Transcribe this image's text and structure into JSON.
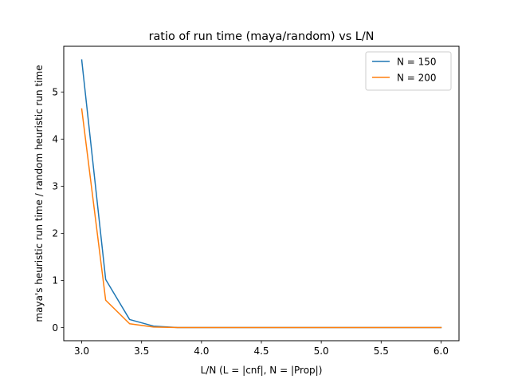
{
  "chart_data": {
    "type": "line",
    "title": "ratio of run time (maya/random) vs L/N",
    "xlabel": "L/N (L = |cnf|, N = |Prop|)",
    "ylabel": "maya's heuristic run time / random heuristic run time",
    "xlim": [
      2.85,
      6.15
    ],
    "ylim": [
      -0.28,
      5.97
    ],
    "x_ticks": [
      3.0,
      3.5,
      4.0,
      4.5,
      5.0,
      5.5,
      6.0
    ],
    "x_tick_labels": [
      "3.0",
      "3.5",
      "4.0",
      "4.5",
      "5.0",
      "5.5",
      "6.0"
    ],
    "y_ticks": [
      0,
      1,
      2,
      3,
      4,
      5
    ],
    "y_tick_labels": [
      "0",
      "1",
      "2",
      "3",
      "4",
      "5"
    ],
    "grid": false,
    "legend_position": "upper right",
    "series": [
      {
        "name": "N = 150",
        "color": "#1f77b4",
        "x": [
          3.0,
          3.2,
          3.4,
          3.6,
          3.8,
          4.0,
          4.2,
          4.4,
          4.6,
          4.8,
          5.0,
          5.2,
          5.4,
          5.6,
          5.8,
          6.0
        ],
        "y": [
          5.68,
          1.02,
          0.17,
          0.03,
          0.0,
          0.0,
          0.0,
          0.0,
          0.0,
          0.0,
          0.0,
          0.0,
          0.0,
          0.0,
          0.0,
          0.0
        ]
      },
      {
        "name": "N = 200",
        "color": "#ff7f0e",
        "x": [
          3.0,
          3.2,
          3.4,
          3.6,
          3.8,
          4.0,
          4.2,
          4.4,
          4.6,
          4.8,
          5.0,
          5.2,
          5.4,
          5.6,
          5.8,
          6.0
        ],
        "y": [
          4.64,
          0.58,
          0.08,
          0.01,
          0.0,
          0.0,
          0.0,
          0.0,
          0.0,
          0.0,
          0.0,
          0.0,
          0.0,
          0.0,
          0.0,
          0.0
        ]
      }
    ]
  }
}
